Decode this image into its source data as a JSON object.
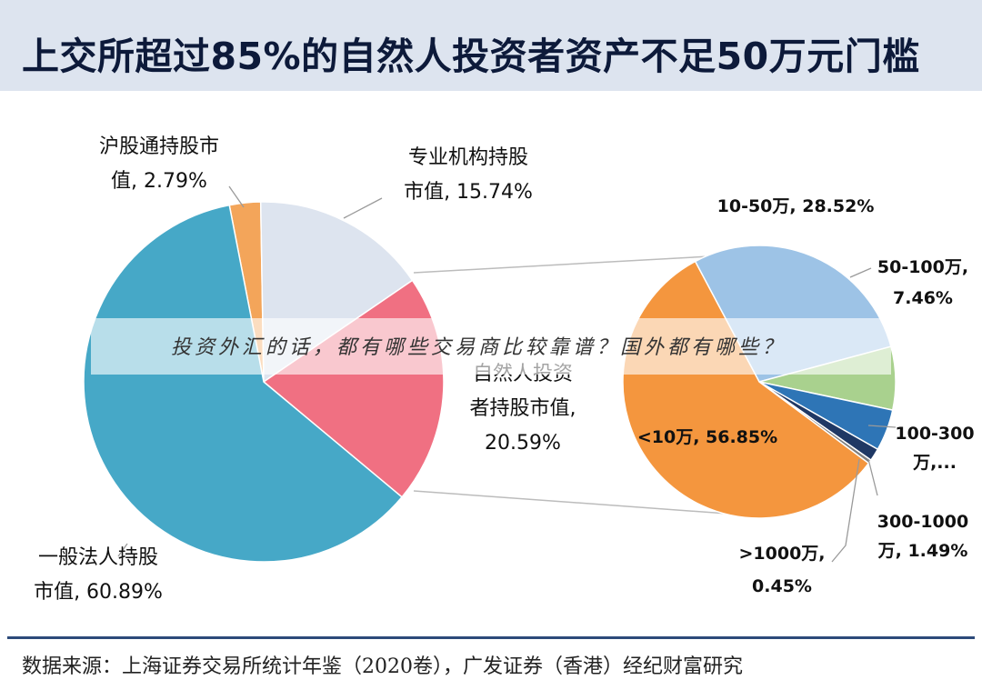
{
  "title": "上交所超过85%的自然人投资者资产不足50万元门槛",
  "banner": "投资外汇的话，都有哪些交易商比较靠谱？国外都有哪些？",
  "source": "数据来源：上海证券交易所统计年鉴（2020卷），广发证券（香港）经纪财富研究",
  "chart_data": [
    {
      "type": "pie",
      "slices": [
        {
          "label_lines": [
            "沪股通持股市",
            "值, 2.79%"
          ],
          "value": 2.79,
          "color": "#f3a55a"
        },
        {
          "label_lines": [
            "专业机构持股",
            "市值, 15.74%"
          ],
          "value": 15.74,
          "color": "#dde4ef"
        },
        {
          "label_lines": [
            "自然人投资",
            "者持股市值,",
            "20.59%"
          ],
          "value": 20.59,
          "color": "#f07082"
        },
        {
          "label_lines": [
            "一般法人持股",
            "市值, 60.89%"
          ],
          "value": 60.89,
          "color": "#46a8c7"
        }
      ]
    },
    {
      "type": "pie",
      "slices": [
        {
          "label_lines": [
            "10-50万, 28.52%"
          ],
          "value": 28.52,
          "color": "#9dc3e6"
        },
        {
          "label_lines": [
            "50-100万,",
            "7.46%"
          ],
          "value": 7.46,
          "color": "#a9d18e"
        },
        {
          "label_lines": [
            "100-300",
            "万,..."
          ],
          "value": 4.9,
          "color": "#2e75b6"
        },
        {
          "label_lines": [
            "300-1000",
            "万, 1.49%"
          ],
          "value": 1.49,
          "color": "#1f3864"
        },
        {
          "label_lines": [
            ">1000万,",
            "0.45%"
          ],
          "value": 0.45,
          "color": "#7f7f7f"
        },
        {
          "label_lines": [
            "<10万, 56.85%"
          ],
          "value": 56.85,
          "color": "#f4963e"
        }
      ]
    }
  ]
}
